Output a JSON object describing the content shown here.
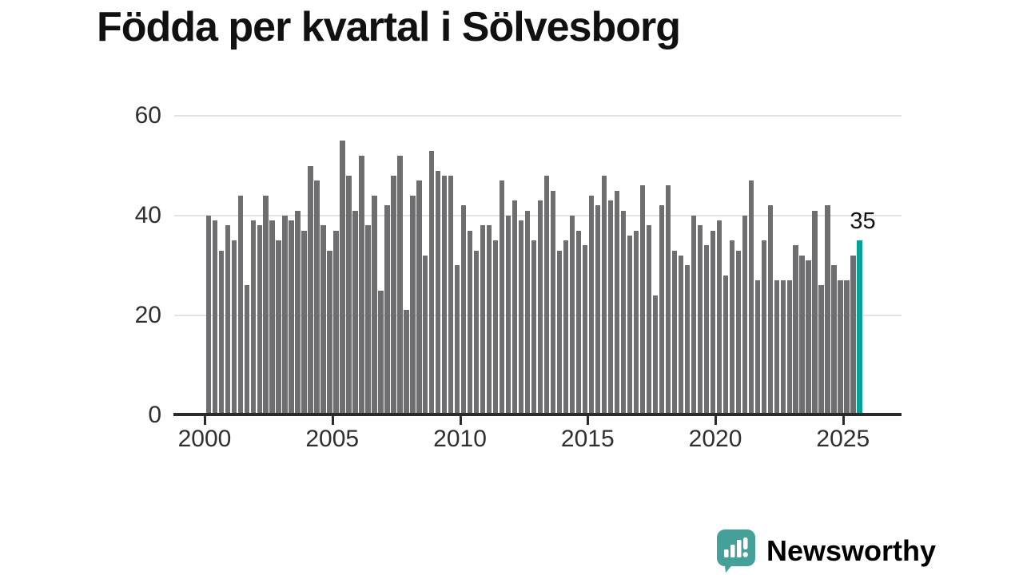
{
  "title": "Födda per kvartal i Sölvesborg",
  "annotation": {
    "last_value_label": "35"
  },
  "y_axis": {
    "tick_labels": [
      "0",
      "20",
      "40",
      "60"
    ],
    "tick_values": [
      0,
      20,
      40,
      60
    ]
  },
  "x_axis": {
    "tick_labels": [
      "2000",
      "2005",
      "2010",
      "2015",
      "2020",
      "2025"
    ]
  },
  "logo": {
    "brand": "Newsworthy",
    "icon": "bar-chart-speech-bubble-icon"
  },
  "colors": {
    "bar": "#6e6e71",
    "highlight": "#00a29a",
    "gridline": "#e3e3e3",
    "axis": "#2b2b2b",
    "text": "#2f2f2f",
    "title_text": "#111111",
    "logo_teal": "#45a09a"
  },
  "chart_data": {
    "type": "bar",
    "title": "Födda per kvartal i Sölvesborg",
    "xlabel": "",
    "ylabel": "",
    "ylim": [
      0,
      62
    ],
    "grid": "horizontal",
    "frequency": "quarterly",
    "start_period": "2000-Q1",
    "end_period": "2025-Q3",
    "x_tick_labels": [
      "2000",
      "2005",
      "2010",
      "2015",
      "2020",
      "2025"
    ],
    "y_tick_values": [
      0,
      20,
      40,
      60
    ],
    "highlight_last_bar": true,
    "highlight_last_value": 35,
    "series": [
      {
        "name": "Födda per kvartal",
        "values_by_year": {
          "2000": [
            40,
            39,
            33,
            38
          ],
          "2001": [
            35,
            44,
            26,
            39
          ],
          "2002": [
            38,
            44,
            39,
            35
          ],
          "2003": [
            40,
            39,
            41,
            37
          ],
          "2004": [
            50,
            47,
            38,
            33
          ],
          "2005": [
            37,
            55,
            48,
            41
          ],
          "2006": [
            52,
            38,
            44,
            25
          ],
          "2007": [
            42,
            48,
            52,
            21
          ],
          "2008": [
            44,
            47,
            32,
            53
          ],
          "2009": [
            49,
            48,
            48,
            30
          ],
          "2010": [
            42,
            37,
            33,
            38
          ],
          "2011": [
            38,
            35,
            47,
            40
          ],
          "2012": [
            43,
            39,
            41,
            35
          ],
          "2013": [
            43,
            48,
            45,
            33
          ],
          "2014": [
            35,
            40,
            37,
            34
          ],
          "2015": [
            44,
            42,
            48,
            43
          ],
          "2016": [
            45,
            41,
            36,
            37
          ],
          "2017": [
            46,
            38,
            24,
            42
          ],
          "2018": [
            46,
            33,
            32,
            30
          ],
          "2019": [
            40,
            38,
            34,
            37
          ],
          "2020": [
            39,
            28,
            35,
            33
          ],
          "2021": [
            40,
            47,
            27,
            35
          ],
          "2022": [
            42,
            27,
            27,
            27
          ],
          "2023": [
            34,
            32,
            31,
            41
          ],
          "2024": [
            26,
            42,
            30,
            27
          ],
          "2025": [
            27,
            32,
            35
          ]
        }
      }
    ]
  }
}
